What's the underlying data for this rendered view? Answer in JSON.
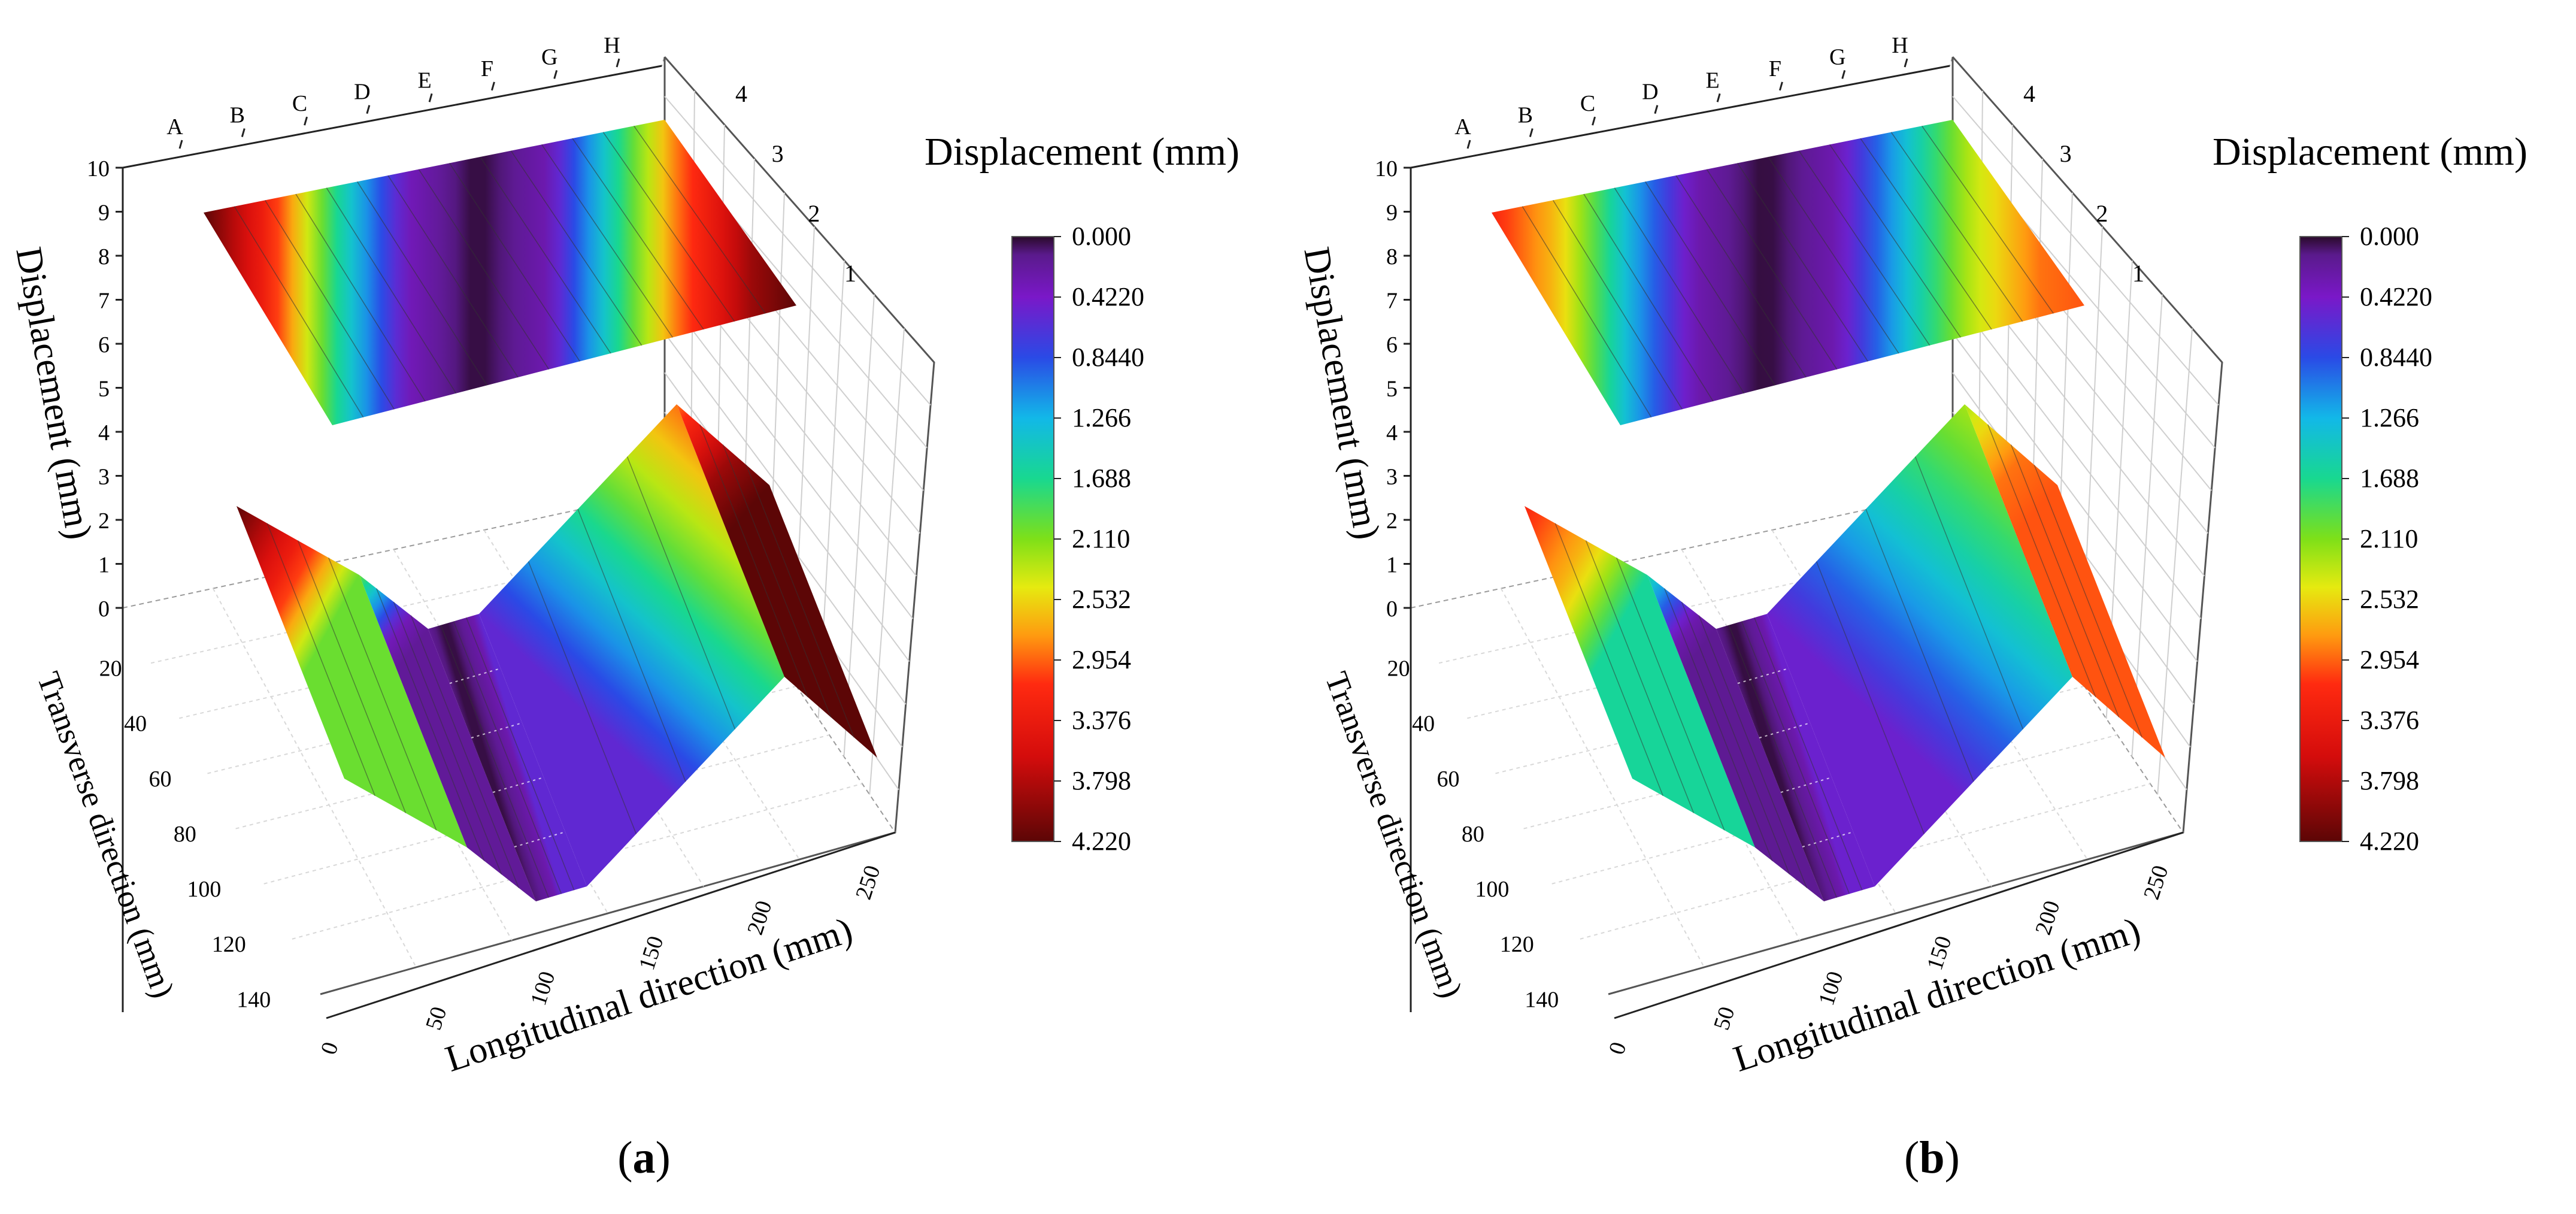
{
  "chart_data": [
    {
      "type": "surface3d",
      "panel_label": "a",
      "z_axis_label": "Displacement (mm)",
      "z_ticks": [
        "0",
        "1",
        "2",
        "3",
        "4",
        "5",
        "6",
        "7",
        "8",
        "9",
        "10"
      ],
      "y_axis_label": "Transverse direction (mm)",
      "y_ticks": [
        "20",
        "40",
        "60",
        "80",
        "100",
        "120",
        "140"
      ],
      "x_axis_label": "Longitudinal direction (mm)",
      "x_ticks": [
        "0",
        "50",
        "100",
        "150",
        "200",
        "250"
      ],
      "top_letters": [
        "A",
        "B",
        "C",
        "D",
        "E",
        "F",
        "G",
        "H"
      ],
      "side_ticks": [
        "1",
        "2",
        "3",
        "4"
      ],
      "colorbar_title": "Displacement (mm)",
      "colorbar_ticks": [
        "0.000",
        "0.4220",
        "0.8440",
        "1.266",
        "1.688",
        "2.110",
        "2.532",
        "2.954",
        "3.376",
        "3.798",
        "4.220"
      ],
      "colorbar_range": [
        0,
        4.22
      ],
      "profile_x": [
        0,
        30,
        60,
        90,
        120,
        150,
        180,
        210,
        240,
        260
      ],
      "profile_displacement": [
        4.22,
        3.2,
        1.6,
        0.35,
        0.0,
        0.3,
        1.6,
        3.0,
        3.9,
        4.22
      ]
    },
    {
      "type": "surface3d",
      "panel_label": "b",
      "z_axis_label": "Displacement (mm)",
      "z_ticks": [
        "0",
        "1",
        "2",
        "3",
        "4",
        "5",
        "6",
        "7",
        "8",
        "9",
        "10"
      ],
      "y_axis_label": "Transverse direction (mm)",
      "y_ticks": [
        "20",
        "40",
        "60",
        "80",
        "100",
        "120",
        "140"
      ],
      "x_axis_label": "Longitudinal direction (mm)",
      "x_ticks": [
        "0",
        "50",
        "100",
        "150",
        "200",
        "250"
      ],
      "top_letters": [
        "A",
        "B",
        "C",
        "D",
        "E",
        "F",
        "G",
        "H"
      ],
      "side_ticks": [
        "1",
        "2",
        "3",
        "4"
      ],
      "colorbar_title": "Displacement (mm)",
      "colorbar_ticks": [
        "0.000",
        "0.4220",
        "0.8440",
        "1.266",
        "1.688",
        "2.110",
        "2.532",
        "2.954",
        "3.376",
        "3.798",
        "4.220"
      ],
      "colorbar_range": [
        0,
        4.22
      ],
      "profile_x": [
        0,
        30,
        60,
        90,
        120,
        150,
        180,
        210,
        240,
        260
      ],
      "profile_displacement": [
        3.2,
        2.6,
        1.3,
        0.3,
        0.0,
        0.3,
        1.3,
        2.3,
        2.9,
        3.0
      ]
    }
  ],
  "captions": [
    "a",
    "b"
  ]
}
